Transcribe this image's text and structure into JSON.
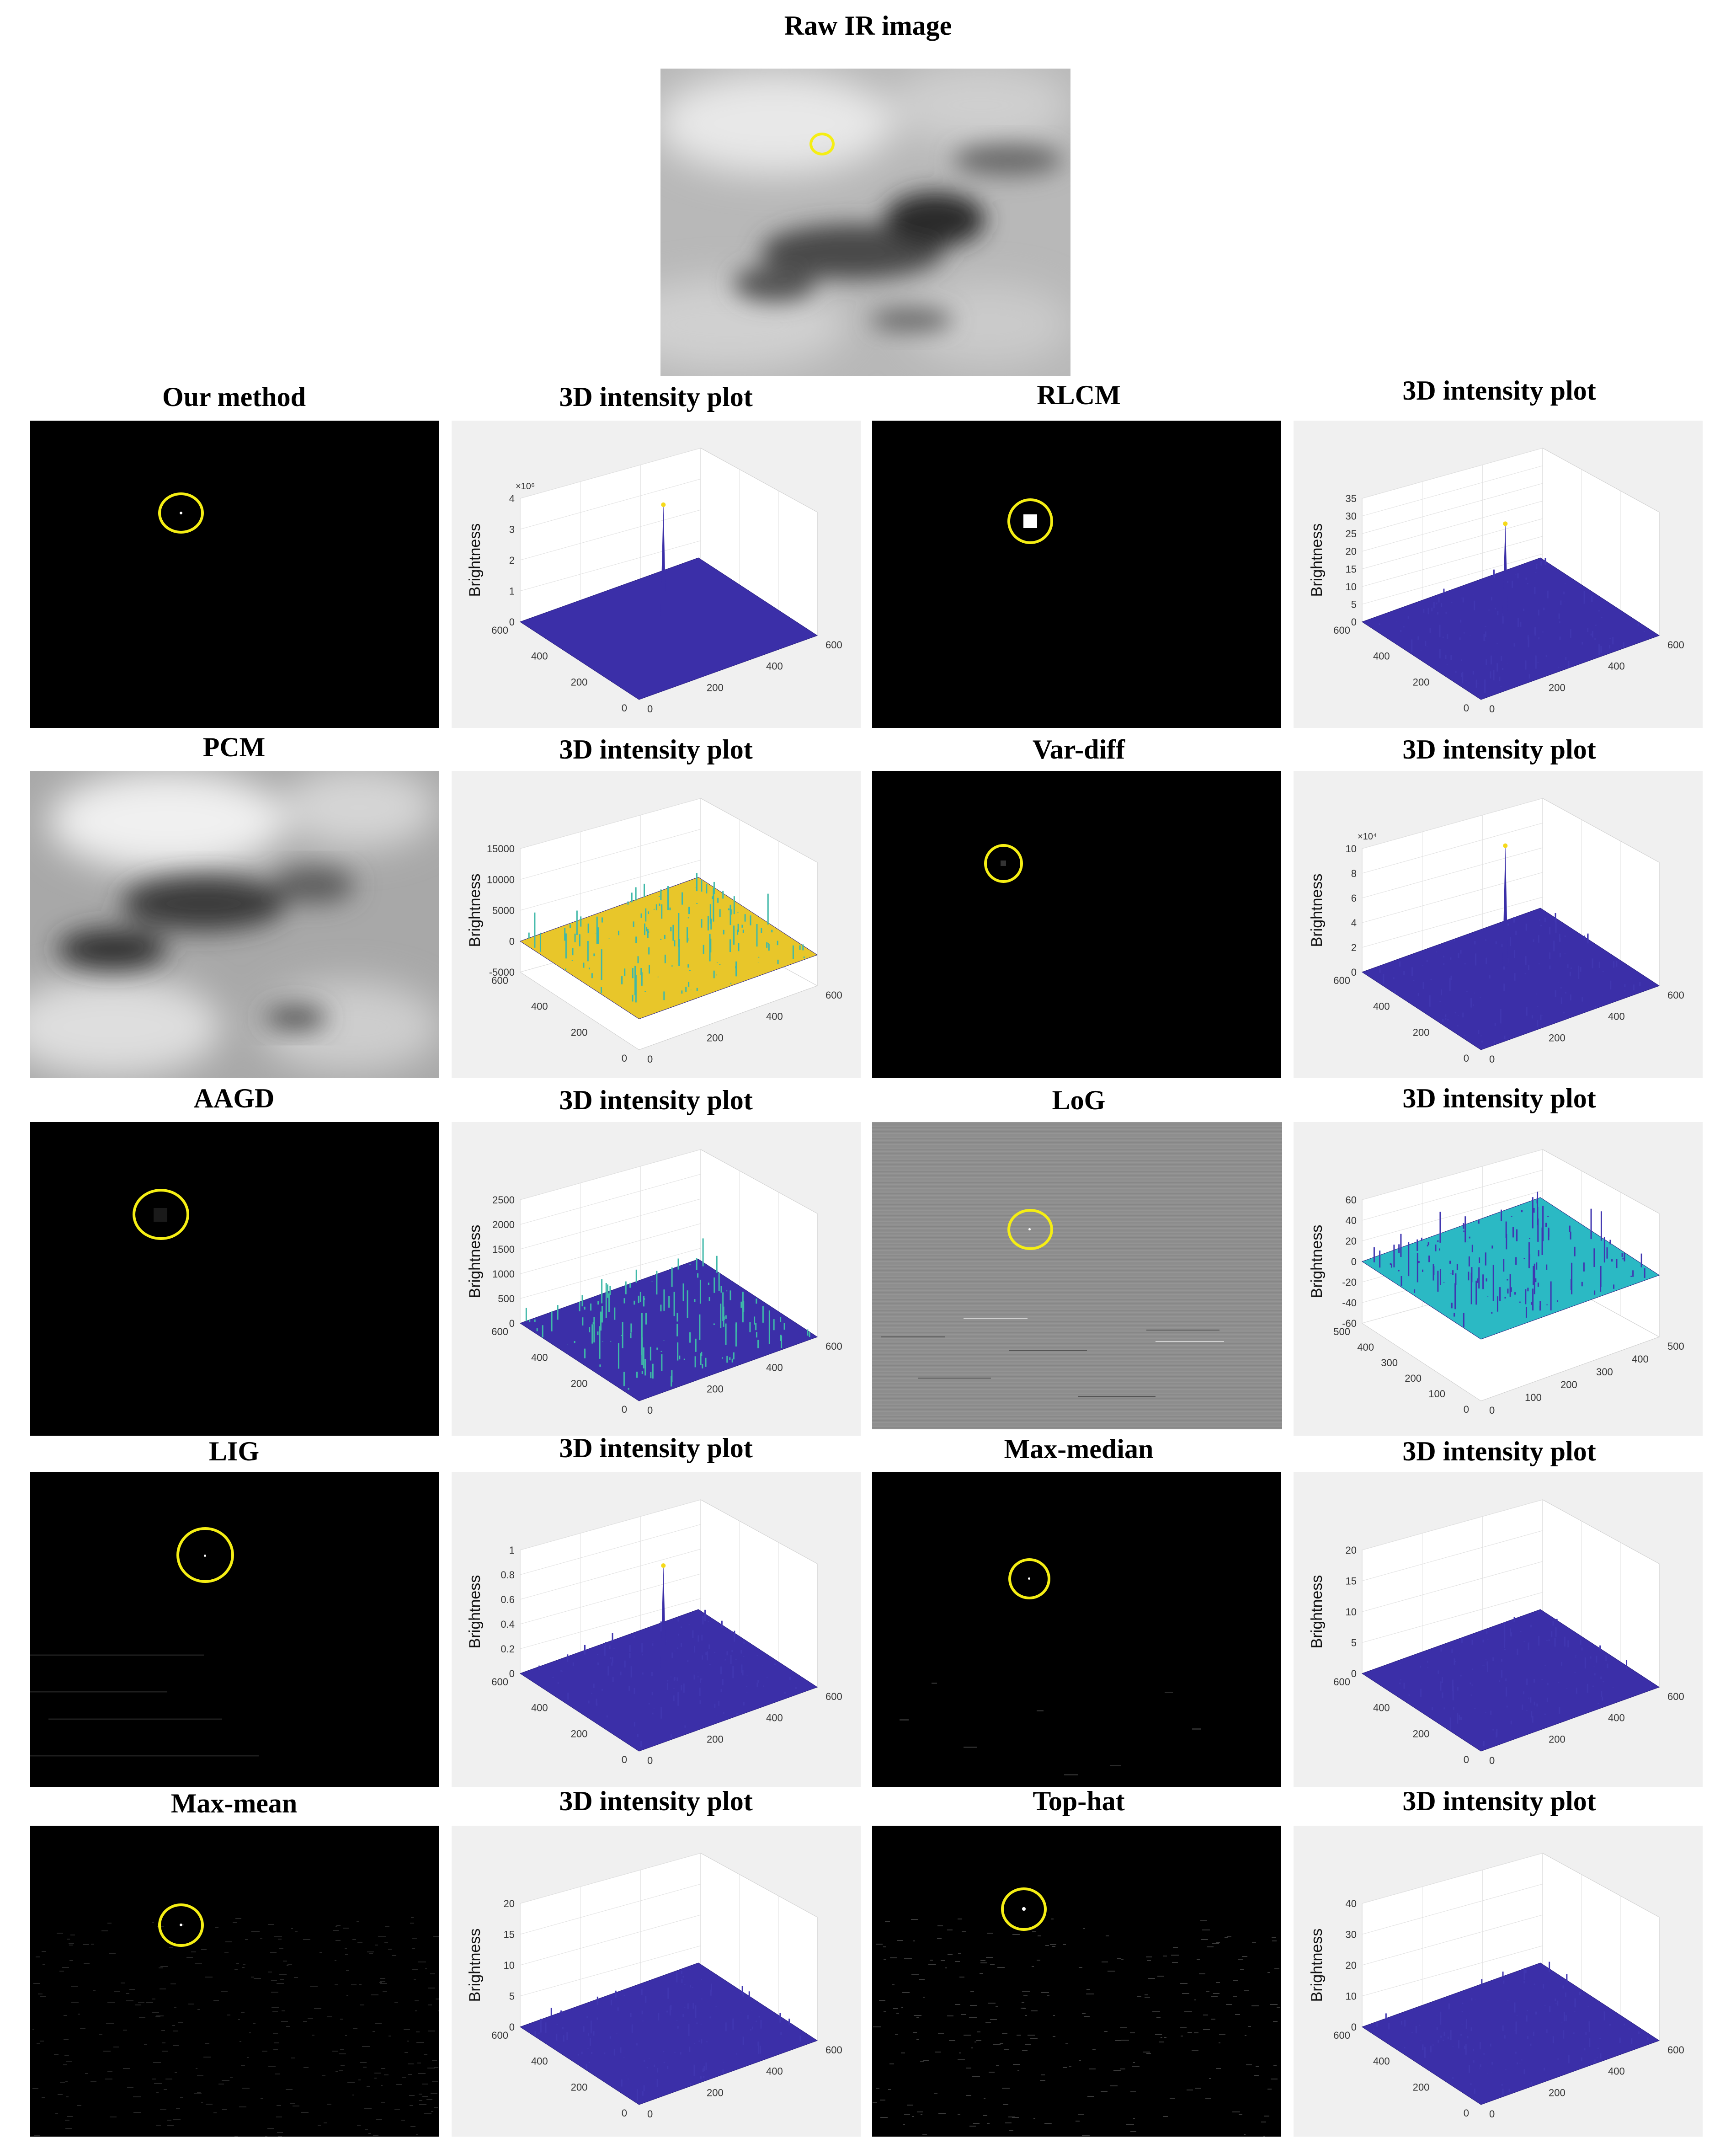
{
  "figure": {
    "raw_title": "Raw IR image",
    "titles": {
      "our_method": "Our method",
      "rlcm": "RLCM",
      "pcm": "PCM",
      "var_diff": "Var-diff",
      "aagd": "AAGD",
      "log": "LoG",
      "lig": "LIG",
      "max_median": "Max-median",
      "max_mean": "Max-mean",
      "top_hat": "Top-hat",
      "plot_title": "3D intensity plot"
    },
    "zlabel": "Brightness",
    "axis_tick_labels": {
      "xy_600": [
        "0",
        "200",
        "400",
        "600"
      ],
      "xy_500": [
        "0",
        "100",
        "200",
        "300",
        "400",
        "500"
      ]
    }
  },
  "chart_data": [
    {
      "type": "surface",
      "method": "Our method",
      "title": "3D intensity plot",
      "zlabel": "Brightness",
      "zticks": [
        "0",
        "1",
        "2",
        "3",
        "4"
      ],
      "z_exponent": "×10⁶",
      "peak": 3.7,
      "xlim": [
        0,
        600
      ],
      "ylim": [
        0,
        600
      ]
    },
    {
      "type": "surface",
      "method": "RLCM",
      "title": "3D intensity plot",
      "zlabel": "Brightness",
      "zticks": [
        "0",
        "5",
        "10",
        "15",
        "20",
        "25",
        "30",
        "35"
      ],
      "peak": 27,
      "xlim": [
        0,
        600
      ],
      "ylim": [
        0,
        600
      ]
    },
    {
      "type": "surface",
      "method": "PCM",
      "title": "3D intensity plot",
      "zlabel": "Brightness",
      "zticks": [
        "-5000",
        "0",
        "5000",
        "10000",
        "15000"
      ],
      "xlim": [
        0,
        600
      ],
      "ylim": [
        0,
        600
      ]
    },
    {
      "type": "surface",
      "method": "Var-diff",
      "title": "3D intensity plot",
      "zlabel": "Brightness",
      "zticks": [
        "0",
        "2",
        "4",
        "6",
        "8",
        "10"
      ],
      "z_exponent": "×10⁴",
      "peak": 10,
      "xlim": [
        0,
        600
      ],
      "ylim": [
        0,
        600
      ]
    },
    {
      "type": "surface",
      "method": "AAGD",
      "title": "3D intensity plot",
      "zlabel": "Brightness",
      "zticks": [
        "0",
        "500",
        "1000",
        "1500",
        "2000",
        "2500"
      ],
      "xlim": [
        0,
        600
      ],
      "ylim": [
        0,
        600
      ]
    },
    {
      "type": "surface",
      "method": "LoG",
      "title": "3D intensity plot",
      "zlabel": "Brightness",
      "zticks": [
        "-60",
        "-40",
        "-20",
        "0",
        "20",
        "40",
        "60"
      ],
      "xlim": [
        0,
        500
      ],
      "ylim": [
        0,
        500
      ]
    },
    {
      "type": "surface",
      "method": "LIG",
      "title": "3D intensity plot",
      "zlabel": "Brightness",
      "zticks": [
        "0",
        "0.2",
        "0.4",
        "0.6",
        "0.8",
        "1"
      ],
      "peak": 0.85,
      "xlim": [
        0,
        600
      ],
      "ylim": [
        0,
        600
      ]
    },
    {
      "type": "surface",
      "method": "Max-median",
      "title": "3D intensity plot",
      "zlabel": "Brightness",
      "zticks": [
        "0",
        "5",
        "10",
        "15",
        "20"
      ],
      "xlim": [
        0,
        600
      ],
      "ylim": [
        0,
        600
      ]
    },
    {
      "type": "surface",
      "method": "Max-mean",
      "title": "3D intensity plot",
      "zlabel": "Brightness",
      "zticks": [
        "0",
        "5",
        "10",
        "15",
        "20"
      ],
      "xlim": [
        0,
        600
      ],
      "ylim": [
        0,
        600
      ]
    },
    {
      "type": "surface",
      "method": "Top-hat",
      "title": "3D intensity plot",
      "zlabel": "Brightness",
      "zticks": [
        "0",
        "10",
        "20",
        "30",
        "40"
      ],
      "xlim": [
        0,
        600
      ],
      "ylim": [
        0,
        600
      ]
    }
  ],
  "colors": {
    "surface": "#3b2fa8",
    "peak": "#f5d91a",
    "highlight": "#f5ee14",
    "mid": "#2fb6a9"
  }
}
